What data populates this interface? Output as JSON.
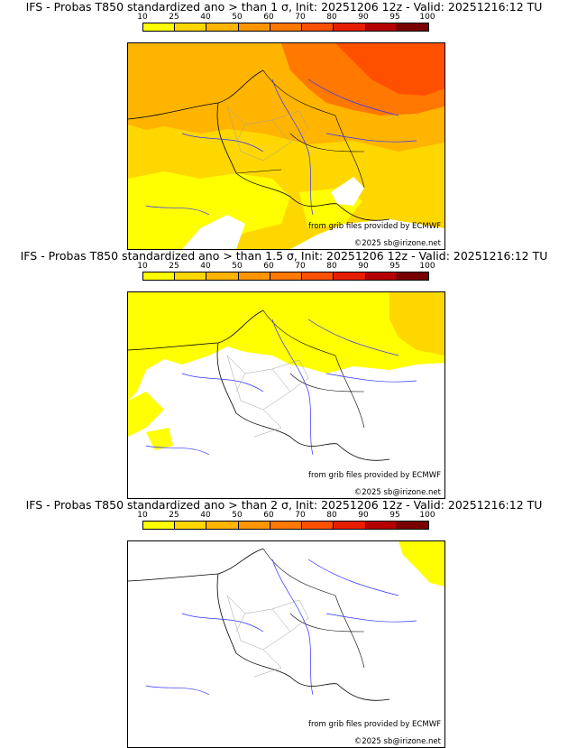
{
  "panels": [
    {
      "title": "IFS - Probas T850  standardized ano > than 1 σ, Init: 20251206 12z - Valid: 20251216:12 TU",
      "credit": "from grib files provided by ECMWF",
      "copyright": "©2025 sb@irizone.net"
    },
    {
      "title": "IFS - Probas T850  standardized ano > than 1.5 σ, Init: 20251206 12z - Valid: 20251216:12 TU",
      "credit": "from grib files provided by ECMWF",
      "copyright": "©2025 sb@irizone.net"
    },
    {
      "title": "IFS - Probas T850  standardized ano > than 2 σ, Init: 20251206 12z - Valid: 20251216:12 TU",
      "credit": "from grib files provided by ECMWF",
      "copyright": "©2025 sb@irizone.net"
    }
  ],
  "legend": {
    "labels": [
      "10",
      "25",
      "40",
      "50",
      "60",
      "70",
      "80",
      "90",
      "95",
      "100"
    ],
    "colors": [
      "#ffff00",
      "#ffd700",
      "#ffb400",
      "#ff9600",
      "#ff7800",
      "#ff5000",
      "#e61e00",
      "#b40000",
      "#780000"
    ]
  },
  "fill_colors": {
    "land_low": "#ffff00",
    "land_mid": "#ffd700",
    "land_high": "#ffb400",
    "hot": "#ff7800",
    "hotter": "#ff5000",
    "sea": "#ffffff",
    "rivers": "#3030ff",
    "borders": "#a0a0a0"
  }
}
